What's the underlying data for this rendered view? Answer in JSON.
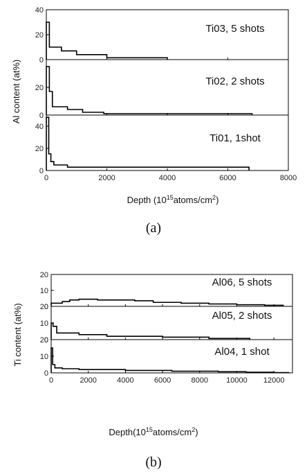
{
  "figure_a": {
    "caption": "(a)",
    "ylabel": "Al content (at%)",
    "xlabel_base": "Depth (10",
    "xlabel_sup": "15",
    "xlabel_tail": "atoms/cm",
    "xlabel_sup2": "2",
    "xlabel_close": ")"
  },
  "figure_b": {
    "caption": "(b)",
    "ylabel": "Ti content (at%)",
    "xlabel_base": "Depth(10",
    "xlabel_sup": "15",
    "xlabel_tail": "atoms/cm",
    "xlabel_sup2": "2",
    "xlabel_close": ")"
  },
  "chart_data": [
    {
      "type": "line",
      "xlim": [
        0,
        8000
      ],
      "xticks": [
        0,
        2000,
        4000,
        6000,
        8000
      ],
      "grid": false,
      "panels": [
        {
          "label": "Ti03, 5 shots",
          "ylim": [
            0,
            40
          ],
          "yticks": [
            0,
            20,
            40
          ],
          "steps": [
            [
              0,
              30
            ],
            [
              100,
              10
            ],
            [
              500,
              7
            ],
            [
              1000,
              4
            ],
            [
              2000,
              1.5
            ],
            [
              4000,
              1
            ]
          ]
        },
        {
          "label": "Ti02, 2 shots",
          "ylim": [
            0,
            40
          ],
          "yticks": [
            0,
            20
          ],
          "steps": [
            [
              0,
              35
            ],
            [
              100,
              17
            ],
            [
              200,
              6
            ],
            [
              700,
              4
            ],
            [
              1200,
              2
            ],
            [
              1900,
              1
            ],
            [
              6800,
              0.5
            ]
          ]
        },
        {
          "label": "Ti01, 1shot",
          "ylim": [
            0,
            50
          ],
          "yticks": [
            0,
            20,
            40
          ],
          "steps": [
            [
              0,
              48
            ],
            [
              80,
              15
            ],
            [
              150,
              8
            ],
            [
              250,
              5
            ],
            [
              700,
              3
            ],
            [
              6700,
              0
            ]
          ]
        }
      ]
    },
    {
      "type": "line",
      "xlim": [
        0,
        13000
      ],
      "xticks": [
        0,
        2000,
        4000,
        6000,
        8000,
        10000,
        12000
      ],
      "grid": false,
      "panels": [
        {
          "label": "Al06, 5 shots",
          "ylim": [
            0,
            20
          ],
          "yticks": [
            0,
            10,
            20
          ],
          "steps": [
            [
              0,
              2
            ],
            [
              600,
              3
            ],
            [
              1000,
              4
            ],
            [
              1500,
              4.5
            ],
            [
              2500,
              4
            ],
            [
              4500,
              3.5
            ],
            [
              5500,
              2.5
            ],
            [
              7000,
              2
            ],
            [
              8500,
              1.5
            ],
            [
              10000,
              1
            ],
            [
              11500,
              0.7
            ],
            [
              12500,
              0
            ]
          ]
        },
        {
          "label": "Al05, 2 shots",
          "ylim": [
            0,
            20
          ],
          "yticks": [
            0,
            10,
            20
          ],
          "steps": [
            [
              0,
              10
            ],
            [
              100,
              8
            ],
            [
              300,
              4
            ],
            [
              1500,
              3
            ],
            [
              3000,
              2
            ],
            [
              6000,
              1.5
            ],
            [
              8500,
              0.7
            ],
            [
              10700,
              0
            ]
          ]
        },
        {
          "label": "Al04, 1 shot",
          "ylim": [
            0,
            20
          ],
          "yticks": [
            0,
            10,
            20
          ],
          "steps": [
            [
              0,
              15
            ],
            [
              80,
              5
            ],
            [
              200,
              3
            ],
            [
              600,
              2.5
            ],
            [
              1500,
              2
            ],
            [
              4000,
              1.5
            ],
            [
              6500,
              1
            ],
            [
              9000,
              0.7
            ],
            [
              10500,
              0.4
            ],
            [
              12000,
              0.2
            ],
            [
              12800,
              0
            ]
          ]
        }
      ]
    }
  ]
}
